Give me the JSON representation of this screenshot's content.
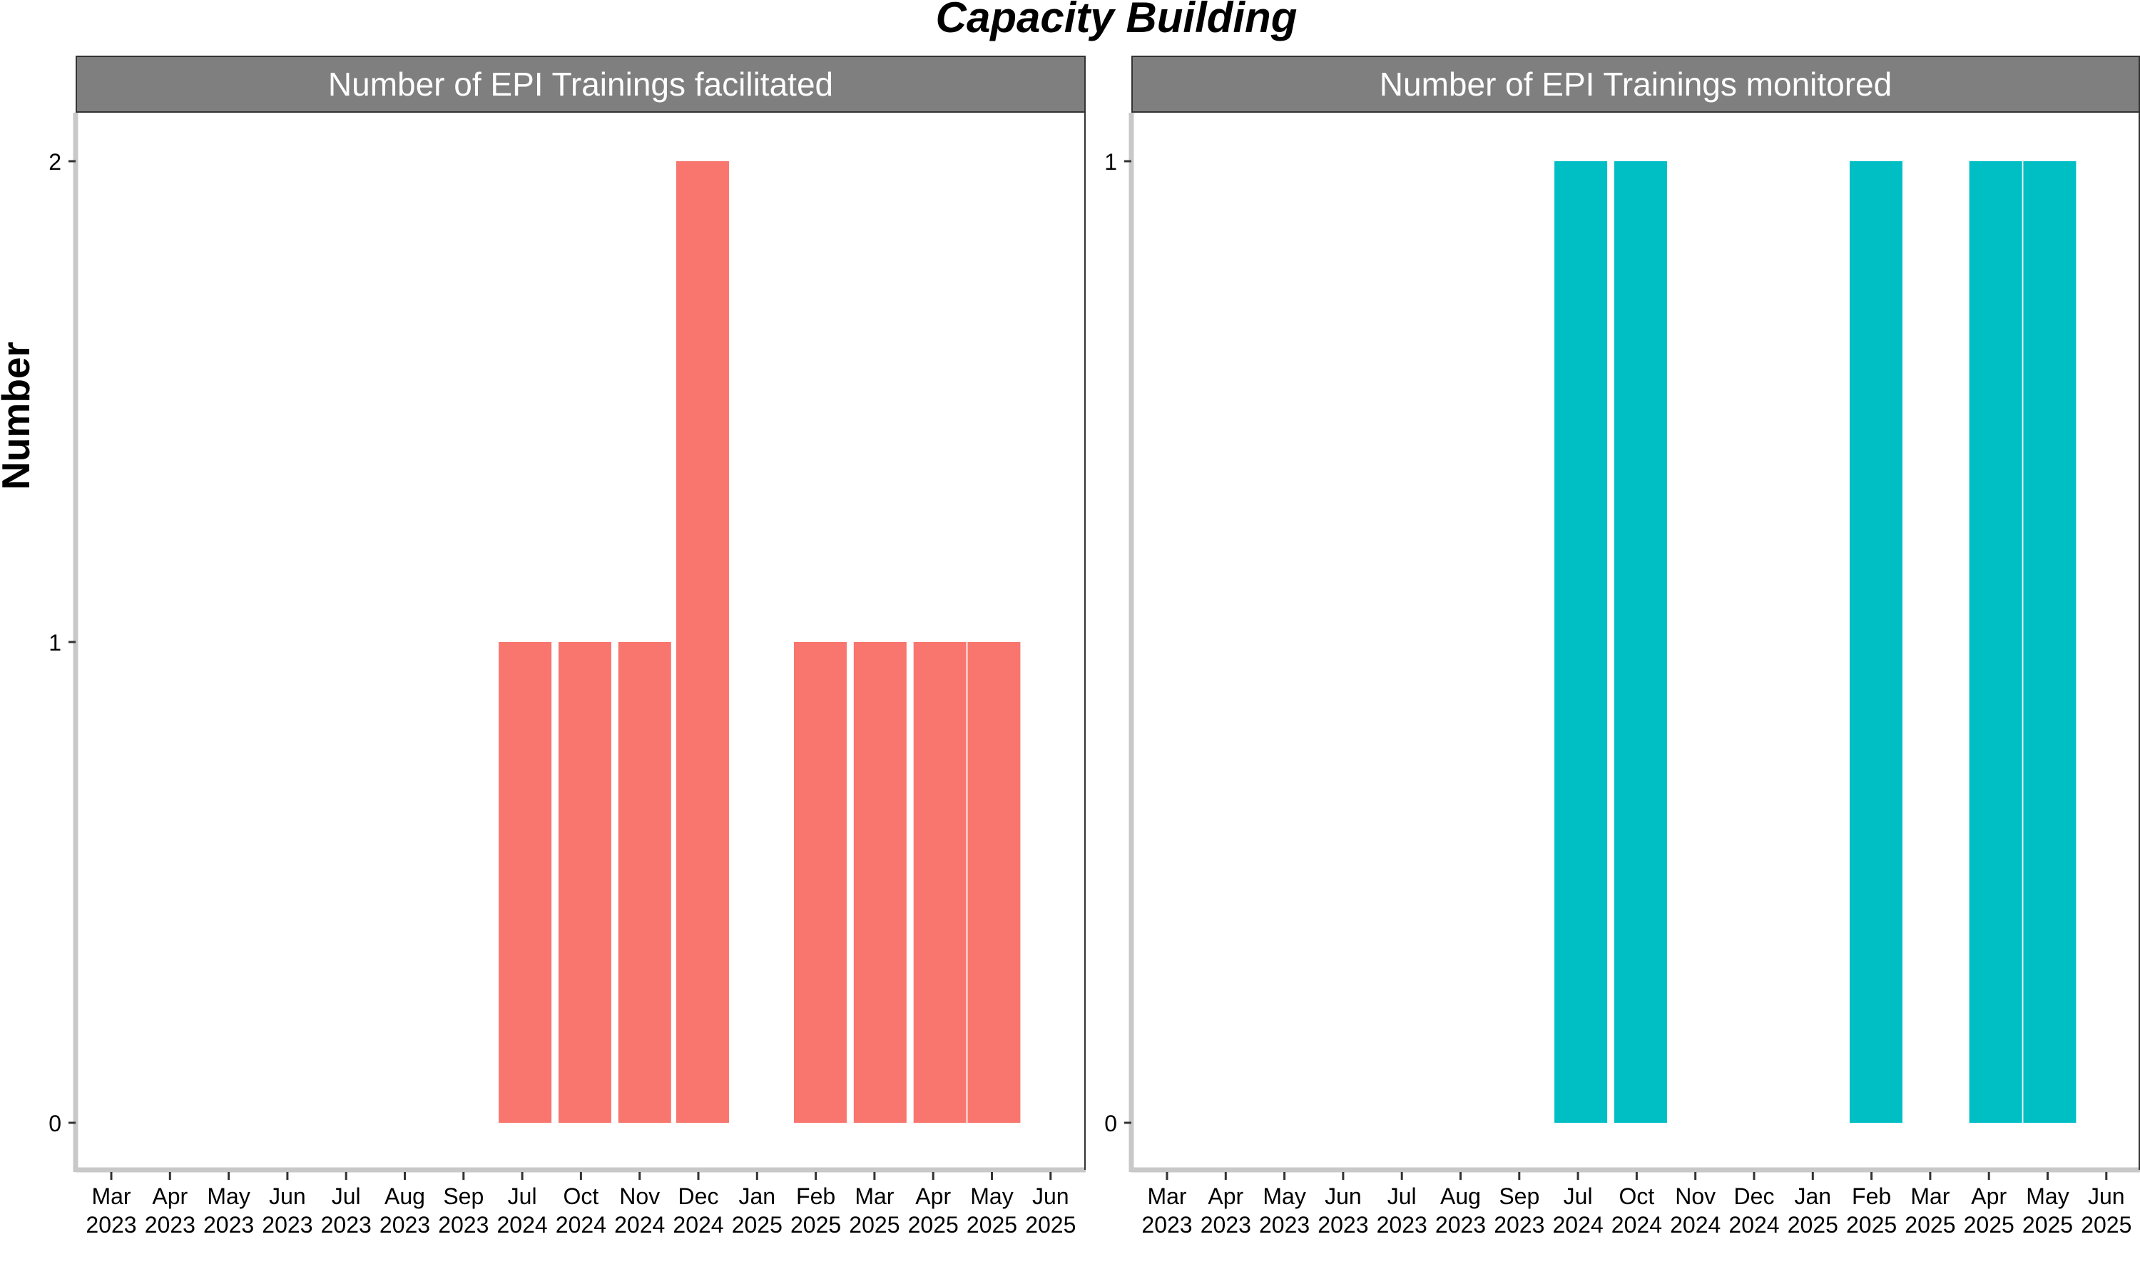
{
  "title": "Capacity Building",
  "ylabel": "Number",
  "colors": {
    "facilitated": "#F8766D",
    "monitored": "#00BFC4",
    "strip": "#7F7F7F"
  },
  "chart_data": [
    {
      "type": "bar",
      "title": "Number of EPI Trainings facilitated",
      "ylabel": "Number",
      "categories": [
        [
          "Mar",
          "2023"
        ],
        [
          "Apr",
          "2023"
        ],
        [
          "May",
          "2023"
        ],
        [
          "Jun",
          "2023"
        ],
        [
          "Jul",
          "2023"
        ],
        [
          "Aug",
          "2023"
        ],
        [
          "Sep",
          "2023"
        ],
        [
          "Jul",
          "2024"
        ],
        [
          "Oct",
          "2024"
        ],
        [
          "Nov",
          "2024"
        ],
        [
          "Dec",
          "2024"
        ],
        [
          "Jan",
          "2025"
        ],
        [
          "Feb",
          "2025"
        ],
        [
          "Mar",
          "2025"
        ],
        [
          "Apr",
          "2025"
        ],
        [
          "May",
          "2025"
        ],
        [
          "Jun",
          "2025"
        ]
      ],
      "bars": [
        {
          "x": "2024-06-30",
          "value": 1
        },
        {
          "x": "2024-07-31",
          "value": 1
        },
        {
          "x": "2024-08-31",
          "value": 1
        },
        {
          "x": "2024-09-30",
          "value": 2
        },
        {
          "x": "2024-10-31",
          "value": 0
        },
        {
          "x": "2024-11-30",
          "value": 1
        },
        {
          "x": "2024-12-31",
          "value": 1
        },
        {
          "x": "2025-01-31",
          "value": 1
        },
        {
          "x": "2025-02-28",
          "value": 1
        }
      ],
      "yticks": [
        0,
        1,
        2
      ],
      "ylim": [
        0,
        2
      ],
      "grid": false
    },
    {
      "type": "bar",
      "title": "Number of EPI Trainings monitored",
      "ylabel": "Number",
      "categories": [
        [
          "Mar",
          "2023"
        ],
        [
          "Apr",
          "2023"
        ],
        [
          "May",
          "2023"
        ],
        [
          "Jun",
          "2023"
        ],
        [
          "Jul",
          "2023"
        ],
        [
          "Aug",
          "2023"
        ],
        [
          "Sep",
          "2023"
        ],
        [
          "Jul",
          "2024"
        ],
        [
          "Oct",
          "2024"
        ],
        [
          "Nov",
          "2024"
        ],
        [
          "Dec",
          "2024"
        ],
        [
          "Jan",
          "2025"
        ],
        [
          "Feb",
          "2025"
        ],
        [
          "Mar",
          "2025"
        ],
        [
          "Apr",
          "2025"
        ],
        [
          "May",
          "2025"
        ],
        [
          "Jun",
          "2025"
        ]
      ],
      "bars": [
        {
          "x": "2024-06-30",
          "value": 1
        },
        {
          "x": "2024-07-31",
          "value": 1
        },
        {
          "x": "2024-08-31",
          "value": 0
        },
        {
          "x": "2024-09-30",
          "value": 0
        },
        {
          "x": "2024-10-31",
          "value": 0
        },
        {
          "x": "2024-11-30",
          "value": 1
        },
        {
          "x": "2024-12-31",
          "value": 0
        },
        {
          "x": "2025-01-31",
          "value": 1
        },
        {
          "x": "2025-02-28",
          "value": 1
        }
      ],
      "yticks": [
        0,
        1
      ],
      "ylim": [
        0,
        1
      ],
      "grid": false
    }
  ]
}
